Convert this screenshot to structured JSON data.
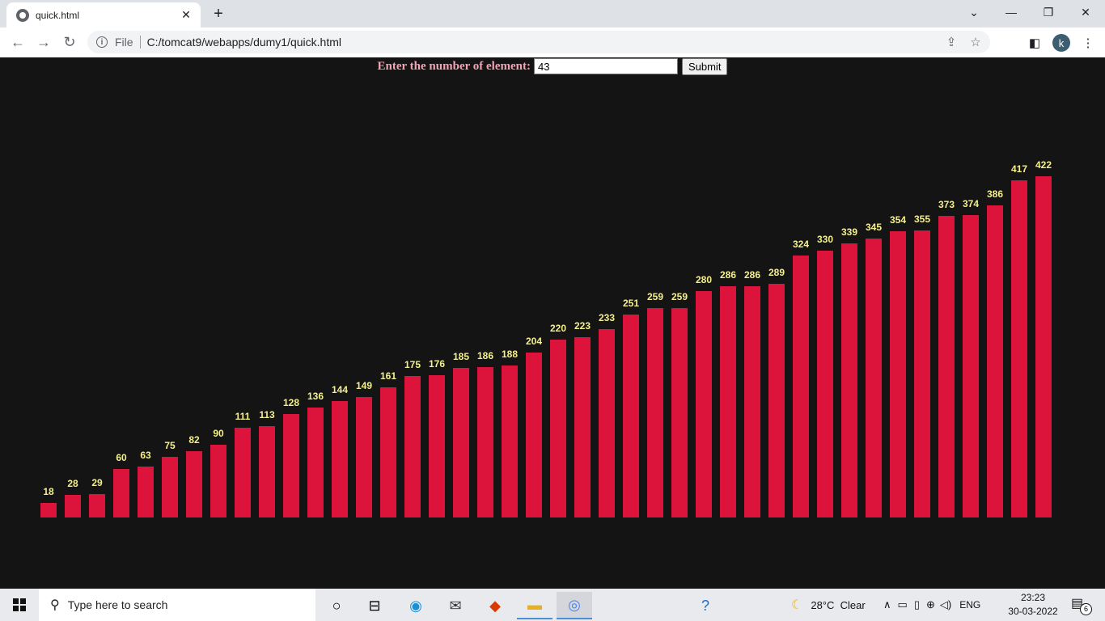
{
  "browser": {
    "tab_title": "quick.html",
    "new_tab": "+",
    "file_label": "File",
    "url": "C:/tomcat9/webapps/dumy1/quick.html",
    "profile_initial": "k"
  },
  "form": {
    "label": "Enter the number of element:",
    "input_value": "43",
    "submit_label": "Submit"
  },
  "chart_data": {
    "type": "bar",
    "bar_color": "#dc143c",
    "label_color": "#f5f08a",
    "values": [
      18,
      28,
      29,
      60,
      63,
      75,
      82,
      90,
      111,
      113,
      128,
      136,
      144,
      149,
      161,
      175,
      176,
      185,
      186,
      188,
      204,
      220,
      223,
      233,
      251,
      259,
      259,
      280,
      286,
      286,
      289,
      324,
      330,
      339,
      345,
      354,
      355,
      373,
      374,
      386,
      417,
      422
    ]
  },
  "taskbar": {
    "search_placeholder": "Type here to search",
    "weather": "28°C  Clear",
    "language": "ENG",
    "time": "23:23",
    "date": "30-03-2022",
    "notifications": "6"
  }
}
